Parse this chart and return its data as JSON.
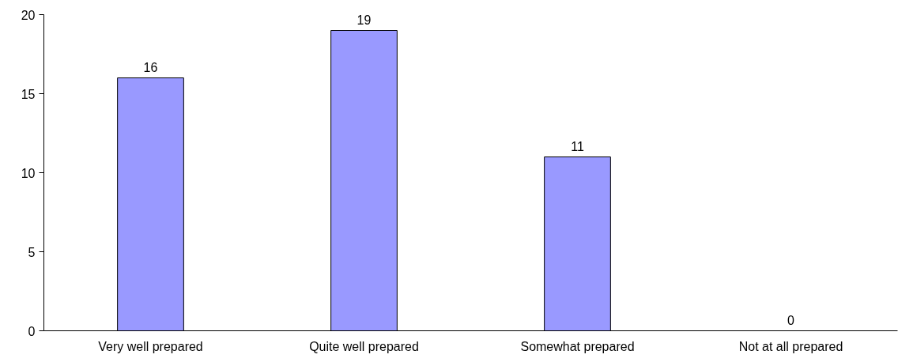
{
  "chart_data": {
    "type": "bar",
    "categories": [
      "Very well prepared",
      "Quite well prepared",
      "Somewhat prepared",
      "Not at all prepared"
    ],
    "values": [
      16,
      19,
      11,
      0
    ],
    "color": "#9999ff",
    "ylim": [
      0,
      20
    ],
    "yticks": [
      0,
      5,
      10,
      15,
      20
    ],
    "grid": false,
    "data_labels": true
  }
}
